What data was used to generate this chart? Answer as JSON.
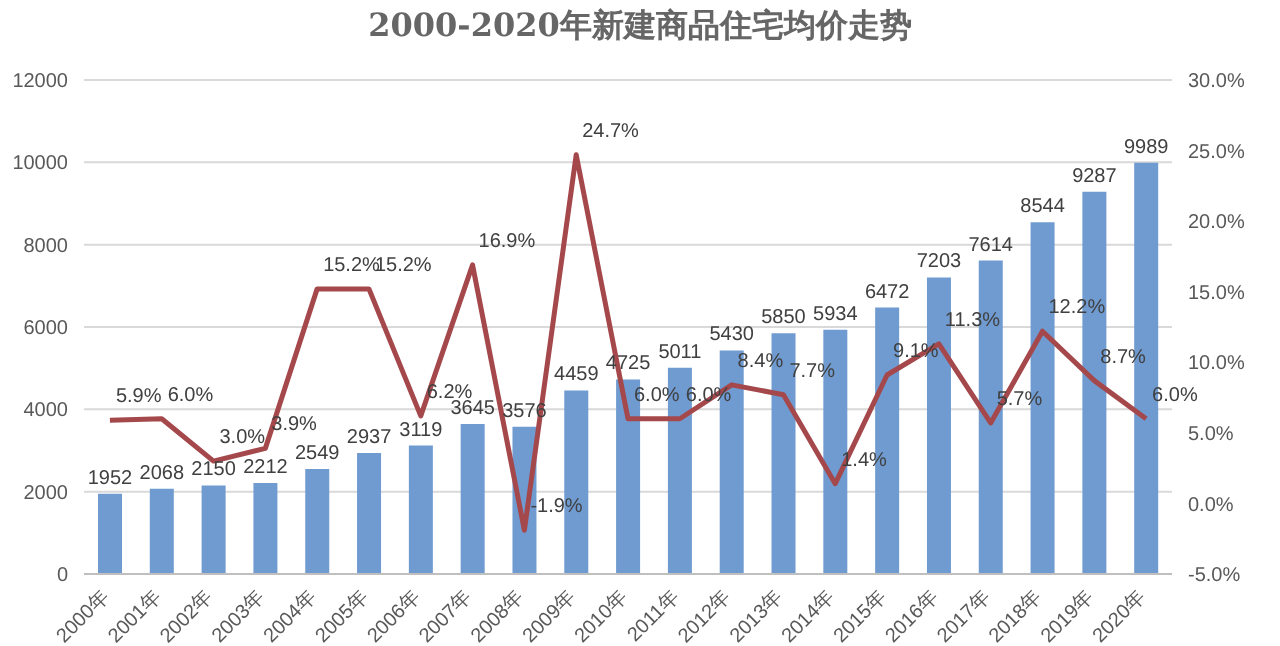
{
  "chart_data": {
    "type": "bar",
    "title": "2000-2020年新建商品住宅均价走势",
    "categories": [
      "2000年",
      "2001年",
      "2002年",
      "2003年",
      "2004年",
      "2005年",
      "2006年",
      "2007年",
      "2008年",
      "2009年",
      "2010年",
      "2011年",
      "2012年",
      "2013年",
      "2014年",
      "2015年",
      "2016年",
      "2017年",
      "2018年",
      "2019年",
      "2020年"
    ],
    "series": [
      {
        "color": "#6f9bd1",
        "values": [
          1952,
          2068,
          2150,
          2212,
          2549,
          2937,
          3119,
          3645,
          3576,
          4459,
          4725,
          5011,
          5430,
          5850,
          5934,
          6472,
          7203,
          7614,
          8544,
          9287,
          9989
        ],
        "value_labels": [
          "1952",
          "2068",
          "2150",
          "2212",
          "2549",
          "2937",
          "3119",
          "3645",
          "3576",
          "4459",
          "4725",
          "5011",
          "5430",
          "5850",
          "5934",
          "6472",
          "7203",
          "7614",
          "8544",
          "9287",
          "9989"
        ]
      },
      {
        "type": "line",
        "axis": "y2",
        "color": "#a5484c",
        "values": [
          5.9,
          6.0,
          3.0,
          3.9,
          15.2,
          15.2,
          6.2,
          16.9,
          -1.9,
          24.7,
          6.0,
          6.0,
          8.4,
          7.7,
          1.4,
          9.1,
          11.3,
          5.7,
          12.2,
          8.7,
          6.0
        ],
        "value_labels": [
          "5.9%",
          "6.0%",
          "3.0%",
          "3.9%",
          "15.2%",
          "15.2%",
          "6.2%",
          "16.9%",
          "-1.9%",
          "24.7%",
          "6.0%",
          "6.0%",
          "8.4%",
          "7.7%",
          "1.4%",
          "9.1%",
          "11.3%",
          "5.7%",
          "12.2%",
          "8.7%",
          "6.0%"
        ]
      }
    ],
    "ylim": [
      0,
      12000
    ],
    "yticks": [
      0,
      2000,
      4000,
      6000,
      8000,
      10000,
      12000
    ],
    "y2lim": [
      -5,
      30
    ],
    "y2ticks": [
      {
        "value": -5,
        "label": "-5.0%"
      },
      {
        "value": 0,
        "label": "0.0%"
      },
      {
        "value": 5,
        "label": "5.0%"
      },
      {
        "value": 10,
        "label": "10.0%"
      },
      {
        "value": 15,
        "label": "15.0%"
      },
      {
        "value": 20,
        "label": "20.0%"
      },
      {
        "value": 25,
        "label": "25.0%"
      },
      {
        "value": 30,
        "label": "30.0%"
      }
    ],
    "grid": "y",
    "legend": false,
    "marker": "none",
    "line_style": "solid"
  }
}
